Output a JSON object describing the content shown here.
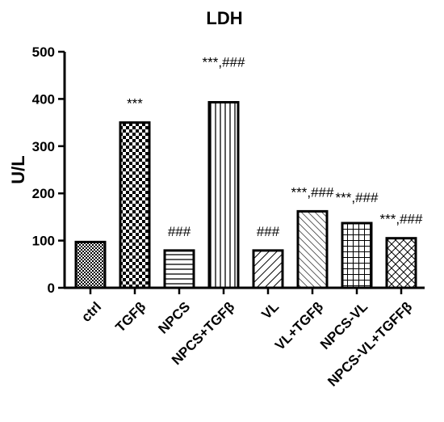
{
  "chart_data": {
    "type": "bar",
    "title": "LDH",
    "xlabel": "",
    "ylabel": "U/L",
    "ylim": [
      0,
      500
    ],
    "yticks": [
      0,
      100,
      200,
      300,
      400,
      500
    ],
    "categories": [
      "ctrl",
      "TGFβ",
      "NPCS",
      "NPCS+TGFβ",
      "VL",
      "VL+TGFβ",
      "NPCS-VL",
      "NPCS-VL+TGFFβ"
    ],
    "values": [
      97,
      350,
      79,
      393,
      79,
      162,
      137,
      105
    ],
    "annotations": [
      "",
      "***",
      "###",
      "***,###",
      "###",
      "***,###",
      "***,###",
      "***,###"
    ],
    "patterns": [
      "checker-fine",
      "checker",
      "horizontal",
      "vertical",
      "diag-right",
      "diag-left",
      "grid",
      "crosshatch"
    ],
    "grid": false,
    "legend": "none",
    "bar_fill": "#ffffff",
    "bar_stroke": "#000000"
  }
}
